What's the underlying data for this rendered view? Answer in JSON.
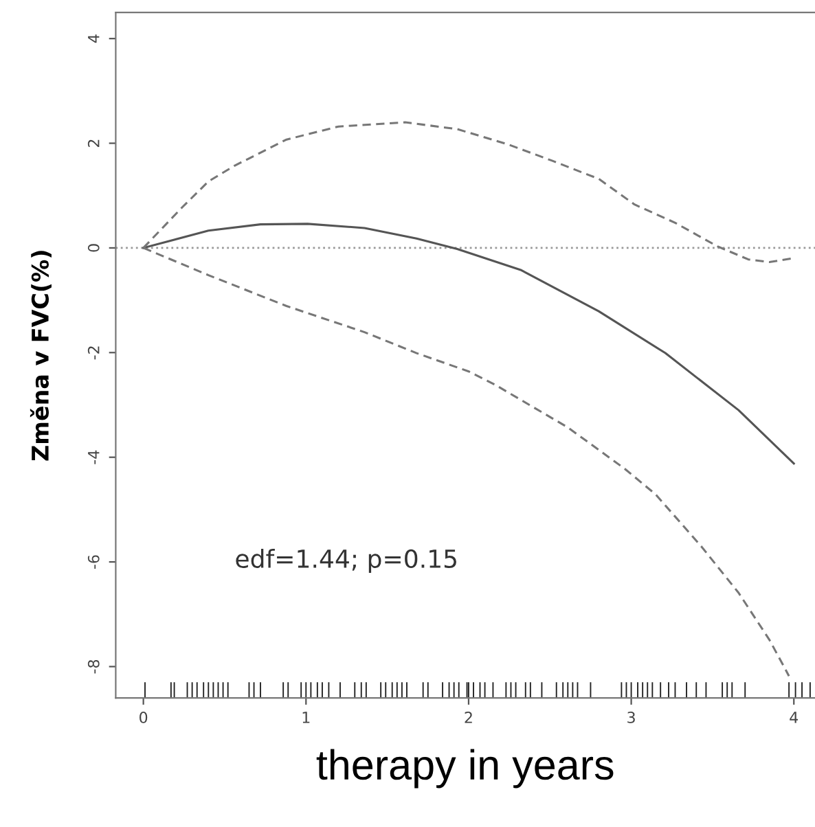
{
  "chart_data": {
    "type": "line",
    "xlabel": "therapy in years",
    "ylabel": "Změna v FVC(%)",
    "xlim": [
      -0.17,
      4.13
    ],
    "ylim": [
      -8.6,
      4.5
    ],
    "xticks": [
      0,
      1,
      2,
      3,
      4
    ],
    "yticks": [
      -8,
      -6,
      -4,
      -2,
      0,
      2,
      4
    ],
    "grid": false,
    "legend": false,
    "series": [
      {
        "line_style": "solid",
        "color": "#555555",
        "x": [
          0,
          0.4,
          0.72,
          1.01,
          1.36,
          1.68,
          1.93,
          2.32,
          2.8,
          3.21,
          3.66,
          4.0
        ],
        "values": [
          0,
          0.33,
          0.45,
          0.46,
          0.38,
          0.18,
          -0.02,
          -0.42,
          -1.21,
          -2.01,
          -3.1,
          -4.12
        ]
      },
      {
        "line_style": "dashed",
        "color": "#777777",
        "x": [
          0,
          0.24,
          0.4,
          0.56,
          0.88,
          1.2,
          1.61,
          1.93,
          2.25,
          2.51,
          2.8,
          3.02,
          3.27,
          3.53,
          3.72,
          3.85,
          4.01
        ],
        "values": [
          0,
          0.78,
          1.27,
          1.57,
          2.07,
          2.32,
          2.4,
          2.27,
          1.97,
          1.67,
          1.32,
          0.83,
          0.48,
          0.03,
          -0.22,
          -0.27,
          -0.19
        ]
      },
      {
        "line_style": "dashed",
        "color": "#777777",
        "x": [
          0,
          0.4,
          0.88,
          1.36,
          1.68,
          2.0,
          2.16,
          2.61,
          2.96,
          3.15,
          3.43,
          3.66,
          3.85,
          3.97
        ],
        "values": [
          0,
          -0.52,
          -1.11,
          -1.61,
          -2.01,
          -2.36,
          -2.61,
          -3.43,
          -4.22,
          -4.71,
          -5.7,
          -6.59,
          -7.49,
          -8.18
        ]
      },
      {
        "type": "bar",
        "color": "#222222",
        "base": [
          -8.6,
          -8.6,
          -8.6,
          -8.6,
          -8.6,
          -8.6,
          -8.6,
          -8.6,
          -8.6,
          -8.6,
          -8.6,
          -8.6,
          -8.6,
          -8.6,
          -8.6,
          -8.6,
          -8.6,
          -8.6,
          -8.6,
          -8.6,
          -8.6,
          -8.6,
          -8.6,
          -8.6,
          -8.6,
          -8.6,
          -8.6,
          -8.6,
          -8.6,
          -8.6,
          -8.6,
          -8.6,
          -8.6,
          -8.6,
          -8.6,
          -8.6,
          -8.6,
          -8.6,
          -8.6,
          -8.6,
          -8.6,
          -8.6,
          -8.6,
          -8.6,
          -8.6,
          -8.6,
          -8.6,
          -8.6,
          -8.6,
          -8.6,
          -8.6,
          -8.6,
          -8.6,
          -8.6,
          -8.6,
          -8.6,
          -8.6,
          -8.6,
          -8.6,
          -8.6,
          -8.6,
          -8.6,
          -8.6,
          -8.6,
          -8.6,
          -8.6,
          -8.6,
          -8.6,
          -8.6,
          -8.6,
          -8.6,
          -8.6,
          -8.6,
          -8.6,
          -8.6,
          -8.6,
          -8.6,
          -8.6
        ],
        "x": [
          0.01,
          0.17,
          0.19,
          0.27,
          0.3,
          0.33,
          0.37,
          0.4,
          0.43,
          0.46,
          0.49,
          0.52,
          0.65,
          0.68,
          0.72,
          0.86,
          0.89,
          0.97,
          1.0,
          1.03,
          1.07,
          1.1,
          1.14,
          1.21,
          1.3,
          1.34,
          1.37,
          1.46,
          1.49,
          1.53,
          1.56,
          1.59,
          1.62,
          1.72,
          1.75,
          1.84,
          1.88,
          1.91,
          1.94,
          1.99,
          2.0,
          2.03,
          2.07,
          2.1,
          2.15,
          2.23,
          2.26,
          2.29,
          2.35,
          2.38,
          2.45,
          2.54,
          2.58,
          2.61,
          2.64,
          2.67,
          2.75,
          2.94,
          2.97,
          3.0,
          3.04,
          3.07,
          3.1,
          3.13,
          3.18,
          3.23,
          3.27,
          3.34,
          3.4,
          3.46,
          3.56,
          3.59,
          3.62,
          3.7,
          3.97,
          4.01,
          4.05,
          4.1
        ],
        "values": [
          0.3,
          0.3,
          0.3,
          0.3,
          0.3,
          0.3,
          0.3,
          0.3,
          0.3,
          0.3,
          0.3,
          0.3,
          0.3,
          0.3,
          0.3,
          0.3,
          0.3,
          0.3,
          0.3,
          0.3,
          0.3,
          0.3,
          0.3,
          0.3,
          0.3,
          0.3,
          0.3,
          0.3,
          0.3,
          0.3,
          0.3,
          0.3,
          0.3,
          0.3,
          0.3,
          0.3,
          0.3,
          0.3,
          0.3,
          0.3,
          0.3,
          0.3,
          0.3,
          0.3,
          0.3,
          0.3,
          0.3,
          0.3,
          0.3,
          0.3,
          0.3,
          0.3,
          0.3,
          0.3,
          0.3,
          0.3,
          0.3,
          0.3,
          0.3,
          0.3,
          0.3,
          0.3,
          0.3,
          0.3,
          0.3,
          0.3,
          0.3,
          0.3,
          0.3,
          0.3,
          0.3,
          0.3,
          0.3,
          0.3,
          0.3,
          0.3,
          0.3,
          0.3
        ]
      }
    ],
    "ref_lines": [
      {
        "axis": "y",
        "value": 0,
        "color": "#999999",
        "line_style": "dotted"
      }
    ],
    "annotations": [
      "edf=1.44; p=0.15"
    ]
  }
}
